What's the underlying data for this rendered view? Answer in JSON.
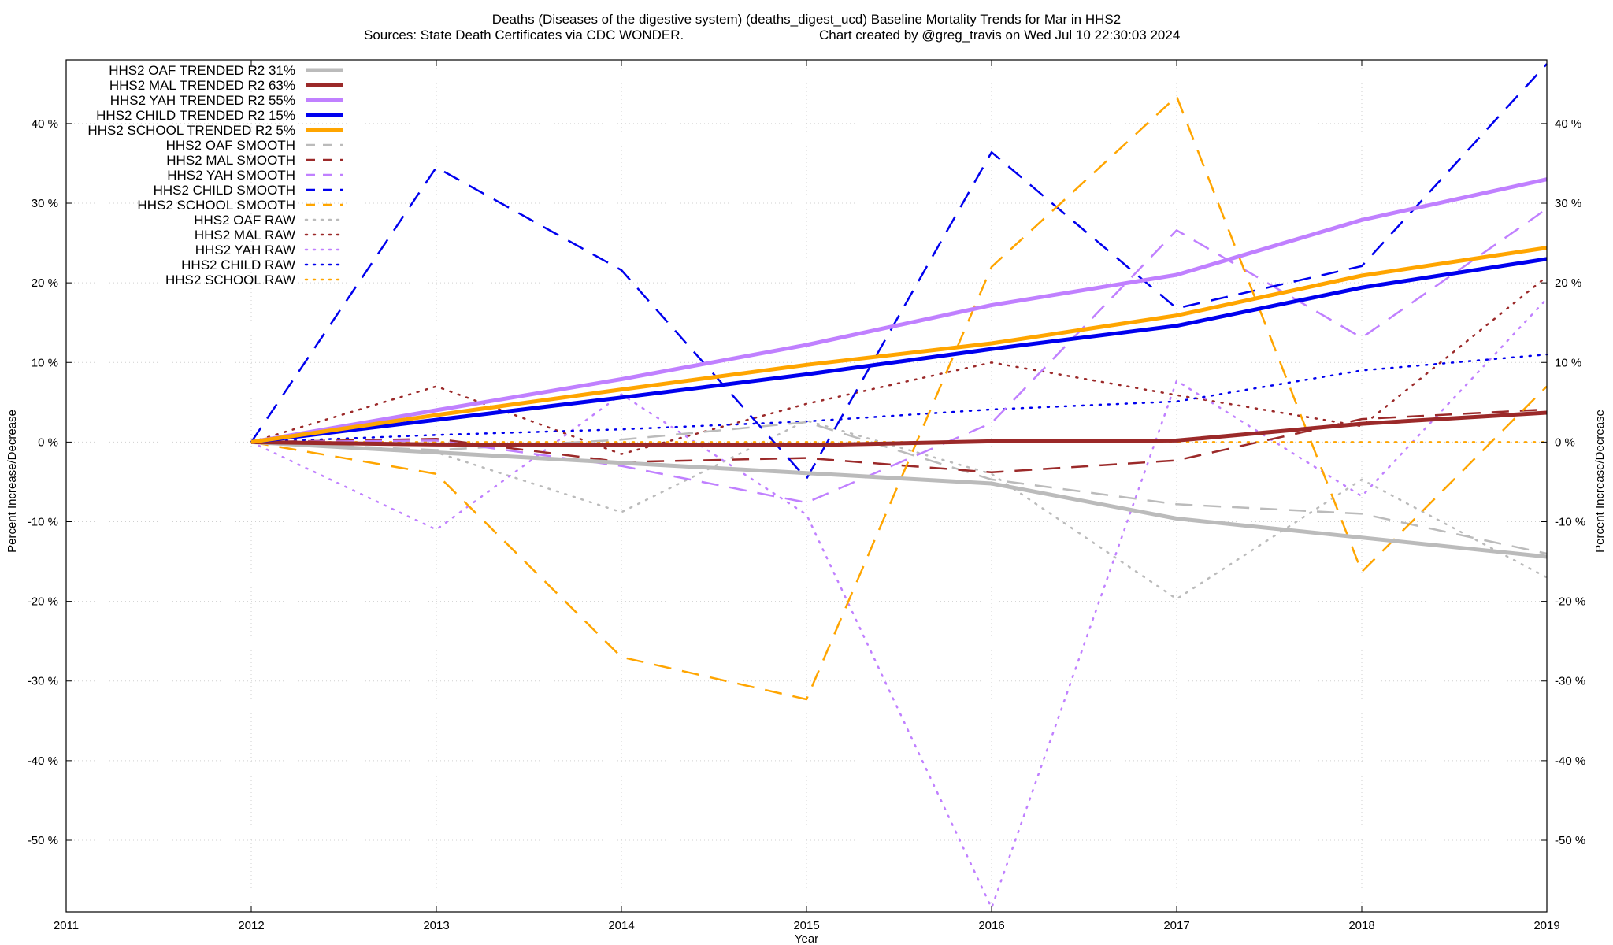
{
  "chart_data": {
    "type": "line",
    "title": "Deaths (Diseases of the digestive system) (deaths_digest_ucd)  Baseline Mortality Trends for Mar in HHS2",
    "subtitle_left": "Sources: State Death Certificates via CDC WONDER.",
    "subtitle_right": "Chart created by @greg_travis on Wed Jul 10 22:30:03 2024",
    "xlabel": "Year",
    "ylabel_left": "Percent Increase/Decrease",
    "ylabel_right": "Percent Increase/Decrease",
    "xlim": [
      2011,
      2019
    ],
    "ylim": [
      -59,
      48
    ],
    "x_ticks": [
      {
        "value": 2011,
        "label": "2011"
      },
      {
        "value": 2012,
        "label": "2012"
      },
      {
        "value": 2013,
        "label": "2013"
      },
      {
        "value": 2014,
        "label": "2014"
      },
      {
        "value": 2015,
        "label": "2015"
      },
      {
        "value": 2016,
        "label": "2016"
      },
      {
        "value": 2017,
        "label": "2017"
      },
      {
        "value": 2018,
        "label": "2018"
      },
      {
        "value": 2019,
        "label": "2019"
      }
    ],
    "y_ticks": [
      {
        "value": 40,
        "label": "40 %"
      },
      {
        "value": 30,
        "label": "30 %"
      },
      {
        "value": 20,
        "label": "20 %"
      },
      {
        "value": 10,
        "label": "10 %"
      },
      {
        "value": 0,
        "label": "0 %"
      },
      {
        "value": -10,
        "label": "-10 %"
      },
      {
        "value": -20,
        "label": "-20 %"
      },
      {
        "value": -30,
        "label": "-30 %"
      },
      {
        "value": -40,
        "label": "-40 %"
      },
      {
        "value": -50,
        "label": "-50 %"
      }
    ],
    "grid": true,
    "legend_position": "top-left",
    "x": [
      2012,
      2013,
      2014,
      2015,
      2016,
      2017,
      2018,
      2019
    ],
    "series": [
      {
        "name": "HHS2 OAF TRENDED R2  31%",
        "style": "trend",
        "color": "#bbbbbb",
        "values": [
          0,
          -1.3,
          -2.6,
          -3.9,
          -5.2,
          -9.6,
          -12.0,
          -14.4
        ]
      },
      {
        "name": "HHS2 MAL TRENDED R2  63%",
        "style": "trend",
        "color": "#9b2929",
        "values": [
          0,
          -0.3,
          -0.4,
          -0.4,
          0.1,
          0.2,
          2.3,
          3.7
        ]
      },
      {
        "name": "HHS2 YAH TRENDED R2  55%",
        "style": "trend",
        "color": "#c080ff",
        "values": [
          0,
          4.0,
          7.9,
          12.2,
          17.2,
          21.0,
          27.9,
          33.0
        ]
      },
      {
        "name": "HHS2 CHILD TRENDED R2  15%",
        "style": "trend",
        "color": "#0000ee",
        "values": [
          0,
          2.8,
          5.6,
          8.5,
          11.7,
          14.6,
          19.4,
          23.0
        ]
      },
      {
        "name": "HHS2 SCHOOL TRENDED R2   5%",
        "style": "trend",
        "color": "#ffa500",
        "values": [
          0,
          3.4,
          6.6,
          9.7,
          12.4,
          15.9,
          20.9,
          24.4
        ]
      },
      {
        "name": "HHS2 OAF SMOOTH",
        "style": "smooth",
        "color": "#bbbbbb",
        "values": [
          0,
          -1.0,
          0.3,
          2.5,
          -4.7,
          -7.8,
          -9.0,
          -14.0
        ]
      },
      {
        "name": "HHS2 MAL SMOOTH",
        "style": "smooth",
        "color": "#9b2929",
        "values": [
          0,
          0.4,
          -2.5,
          -2.0,
          -3.8,
          -2.3,
          2.9,
          4.1
        ]
      },
      {
        "name": "HHS2 YAH SMOOTH",
        "style": "smooth",
        "color": "#c080ff",
        "values": [
          0,
          0.2,
          -3.0,
          -7.6,
          2.4,
          26.6,
          13.1,
          29.3
        ]
      },
      {
        "name": "HHS2 CHILD SMOOTH",
        "style": "smooth",
        "color": "#0000ee",
        "values": [
          0,
          34.5,
          21.6,
          -4.6,
          36.4,
          16.8,
          22.1,
          47.5
        ]
      },
      {
        "name": "HHS2 SCHOOL SMOOTH",
        "style": "smooth",
        "color": "#ffa500",
        "values": [
          0,
          -4.0,
          -27.0,
          -32.3,
          22.0,
          43.4,
          -16.3,
          7.0
        ]
      },
      {
        "name": "HHS2 OAF RAW",
        "style": "raw",
        "color": "#bbbbbb",
        "values": [
          0,
          -1.3,
          -8.8,
          2.7,
          -4.0,
          -19.7,
          -4.7,
          -17.0
        ]
      },
      {
        "name": "HHS2 MAL RAW",
        "style": "raw",
        "color": "#9b2929",
        "values": [
          0,
          7.0,
          -1.5,
          4.8,
          10.0,
          5.9,
          2.0,
          20.8
        ]
      },
      {
        "name": "HHS2 YAH RAW",
        "style": "raw",
        "color": "#c080ff",
        "values": [
          0,
          -11.0,
          6.0,
          -9.1,
          -58.5,
          7.7,
          -6.8,
          18.0
        ]
      },
      {
        "name": "HHS2 CHILD RAW",
        "style": "raw",
        "color": "#0000ee",
        "values": [
          0,
          0.9,
          1.6,
          2.6,
          4.1,
          5.1,
          9.0,
          11.0
        ]
      },
      {
        "name": "HHS2 SCHOOL RAW",
        "style": "raw",
        "color": "#ffa500",
        "values": [
          0,
          0,
          0,
          0,
          0,
          0,
          0,
          0
        ]
      }
    ]
  }
}
